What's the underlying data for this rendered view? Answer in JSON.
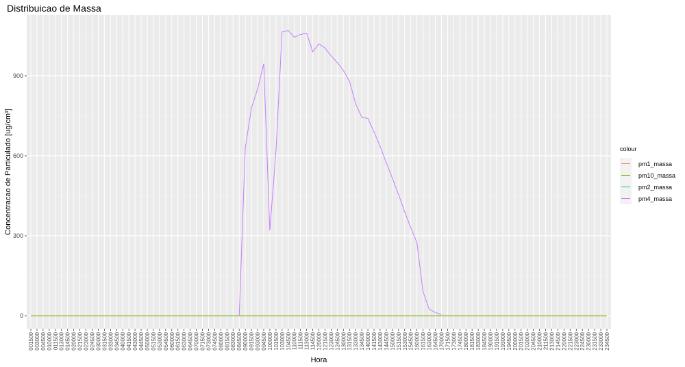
{
  "chart_data": {
    "type": "line",
    "title": "Distribuicao de Massa",
    "xlabel": "Hora",
    "ylabel": "Concentracao de Particulado [ug/cm³]",
    "ylim": [
      0,
      1080
    ],
    "yticks": [
      0,
      300,
      600,
      900
    ],
    "grid": true,
    "legend_placement": "right",
    "legend_title": "colour",
    "categories": [
      "001500",
      "003000",
      "004500",
      "010000",
      "011500",
      "013000",
      "014500",
      "020000",
      "021500",
      "023000",
      "024500",
      "030000",
      "031500",
      "033000",
      "034500",
      "040000",
      "041500",
      "043000",
      "044500",
      "050000",
      "051500",
      "053000",
      "054500",
      "060000",
      "061500",
      "063000",
      "064500",
      "070000",
      "071500",
      "073000",
      "074500",
      "080000",
      "081500",
      "083000",
      "084500",
      "090000",
      "091500",
      "093000",
      "094500",
      "100000",
      "101500",
      "103000",
      "104500",
      "110000",
      "111500",
      "113000",
      "114500",
      "120000",
      "121500",
      "123000",
      "124500",
      "130000",
      "131500",
      "133000",
      "134500",
      "140000",
      "141500",
      "143000",
      "144500",
      "150000",
      "151500",
      "153000",
      "154500",
      "160000",
      "161500",
      "163000",
      "164500",
      "170000",
      "171500",
      "173000",
      "174500",
      "180000",
      "181500",
      "183000",
      "184500",
      "190000",
      "191500",
      "193000",
      "194500",
      "200000",
      "201500",
      "203000",
      "204500",
      "210000",
      "211500",
      "213000",
      "214500",
      "220000",
      "221500",
      "223000",
      "224500",
      "230000",
      "231500",
      "233000",
      "234500"
    ],
    "series": [
      {
        "name": "pm1_massa",
        "color": "#F8766D",
        "values": [
          0,
          0,
          0,
          0,
          0,
          0,
          0,
          0,
          0,
          0,
          0,
          0,
          0,
          0,
          0,
          0,
          0,
          0,
          0,
          0,
          0,
          0,
          0,
          0,
          0,
          0,
          0,
          0,
          0,
          0,
          0,
          0,
          0,
          0,
          0,
          0,
          0,
          0,
          0,
          0,
          0,
          0,
          0,
          0,
          0,
          0,
          0,
          0,
          0,
          0,
          0,
          0,
          0,
          0,
          0,
          0,
          0,
          0,
          0,
          0,
          0,
          0,
          0,
          0,
          0,
          0,
          0,
          0,
          0,
          0,
          0,
          0,
          0,
          0,
          0,
          0,
          0,
          0,
          0,
          0,
          0,
          0,
          0,
          0,
          0,
          0,
          0,
          0,
          0,
          0,
          0,
          0,
          0,
          0,
          0
        ]
      },
      {
        "name": "pm10_massa",
        "color": "#7CAE00",
        "values": [
          0,
          0,
          0,
          0,
          0,
          0,
          0,
          0,
          0,
          0,
          0,
          0,
          0,
          0,
          0,
          0,
          0,
          0,
          0,
          0,
          0,
          0,
          0,
          0,
          0,
          0,
          0,
          0,
          0,
          0,
          0,
          0,
          0,
          0,
          0,
          0,
          0,
          0,
          0,
          0,
          0,
          0,
          0,
          0,
          0,
          0,
          0,
          0,
          0,
          0,
          0,
          0,
          0,
          0,
          0,
          0,
          0,
          0,
          0,
          0,
          0,
          0,
          0,
          0,
          0,
          0,
          0,
          0,
          0,
          0,
          0,
          0,
          0,
          0,
          0,
          0,
          0,
          0,
          0,
          0,
          0,
          0,
          0,
          0,
          0,
          0,
          0,
          0,
          0,
          0,
          0,
          0,
          0,
          0,
          0
        ]
      },
      {
        "name": "pm2_massa",
        "color": "#00BFC4",
        "values": [
          0,
          0,
          0,
          0,
          0,
          0,
          0,
          0,
          0,
          0,
          0,
          0,
          0,
          0,
          0,
          0,
          0,
          0,
          0,
          0,
          0,
          0,
          0,
          0,
          0,
          0,
          0,
          0,
          0,
          0,
          0,
          0,
          0,
          0,
          0,
          0,
          0,
          0,
          0,
          0,
          0,
          0,
          0,
          0,
          0,
          0,
          0,
          0,
          0,
          0,
          0,
          0,
          0,
          0,
          0,
          0,
          0,
          0,
          0,
          0,
          0,
          0,
          0,
          0,
          0,
          0,
          0,
          0,
          0,
          0,
          0,
          0,
          0,
          0,
          0,
          0,
          0,
          0,
          0,
          0,
          0,
          0,
          0,
          0,
          0,
          0,
          0,
          0,
          0,
          0,
          0,
          0,
          0,
          0,
          0
        ]
      },
      {
        "name": "pm4_massa",
        "color": "#C77CFF",
        "values": [
          null,
          null,
          null,
          null,
          null,
          null,
          null,
          null,
          null,
          null,
          null,
          null,
          null,
          null,
          null,
          null,
          null,
          null,
          null,
          null,
          null,
          null,
          null,
          null,
          null,
          null,
          null,
          null,
          null,
          null,
          null,
          null,
          null,
          null,
          0,
          630,
          780,
          850,
          945,
          320,
          620,
          1065,
          1070,
          1045,
          1055,
          1060,
          990,
          1020,
          1005,
          975,
          950,
          920,
          880,
          795,
          745,
          740,
          690,
          635,
          575,
          515,
          455,
          390,
          330,
          275,
          90,
          25,
          12,
          5,
          null,
          null,
          null,
          null,
          null,
          null,
          null,
          null,
          null,
          null,
          null,
          null,
          null,
          null,
          null,
          null,
          null,
          null,
          null,
          null,
          null,
          null,
          null,
          null,
          null,
          null,
          null
        ]
      }
    ]
  }
}
